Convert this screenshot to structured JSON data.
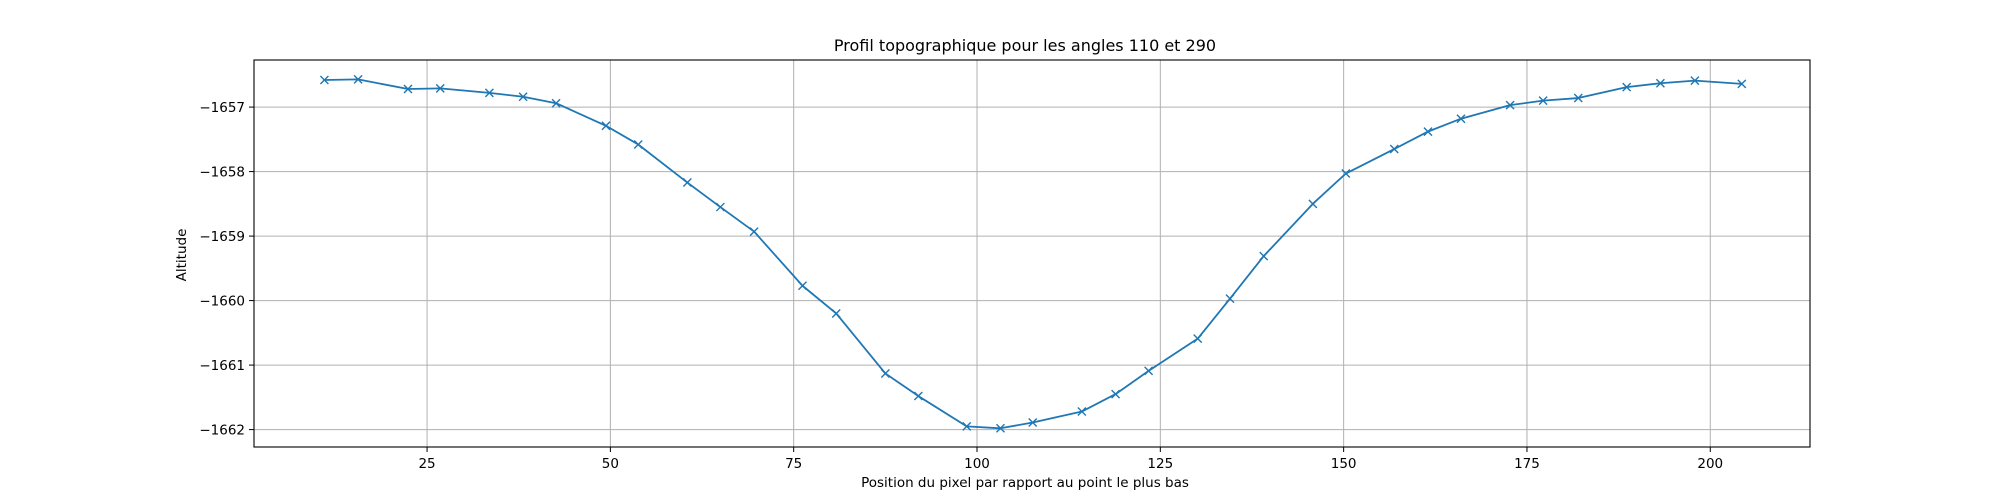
{
  "chart_data": {
    "type": "line",
    "title": "Profil topographique pour les angles 110 et 290",
    "xlabel": "Position du pixel par rapport au point le plus bas",
    "ylabel": "Altitude",
    "xlim": [
      1.4,
      213.6
    ],
    "ylim": [
      -1662.27,
      -1656.27
    ],
    "x_ticks": [
      25,
      50,
      75,
      100,
      125,
      150,
      175,
      200
    ],
    "x_tick_labels": [
      "25",
      "50",
      "75",
      "100",
      "125",
      "150",
      "175",
      "200"
    ],
    "y_ticks": [
      -1657,
      -1658,
      -1659,
      -1660,
      -1661,
      -1662
    ],
    "y_tick_labels": [
      "−1657",
      "−1658",
      "−1659",
      "−1660",
      "−1661",
      "−1662"
    ],
    "grid": true,
    "line_color": "#1f77b4",
    "marker": "x",
    "series": [
      {
        "x": [
          11.0,
          15.6,
          22.4,
          26.8,
          33.5,
          38.1,
          42.6,
          49.4,
          53.8,
          60.5,
          65.0,
          69.6,
          76.2,
          80.8,
          87.5,
          92.0,
          98.6,
          103.2,
          107.6,
          114.3,
          118.9,
          123.4,
          130.1,
          134.5,
          139.1,
          145.8,
          150.3,
          156.9,
          161.5,
          166.0,
          172.7,
          177.2,
          182.0,
          188.6,
          193.2,
          197.9,
          204.3
        ],
        "y": [
          -1656.58,
          -1656.57,
          -1656.72,
          -1656.71,
          -1656.78,
          -1656.84,
          -1656.94,
          -1657.29,
          -1657.58,
          -1658.17,
          -1658.55,
          -1658.93,
          -1659.77,
          -1660.2,
          -1661.13,
          -1661.48,
          -1661.95,
          -1661.98,
          -1661.89,
          -1661.72,
          -1661.45,
          -1661.09,
          -1660.59,
          -1659.97,
          -1659.31,
          -1658.5,
          -1658.03,
          -1657.65,
          -1657.38,
          -1657.18,
          -1656.97,
          -1656.9,
          -1656.86,
          -1656.69,
          -1656.63,
          -1656.59,
          -1656.64
        ]
      }
    ]
  }
}
